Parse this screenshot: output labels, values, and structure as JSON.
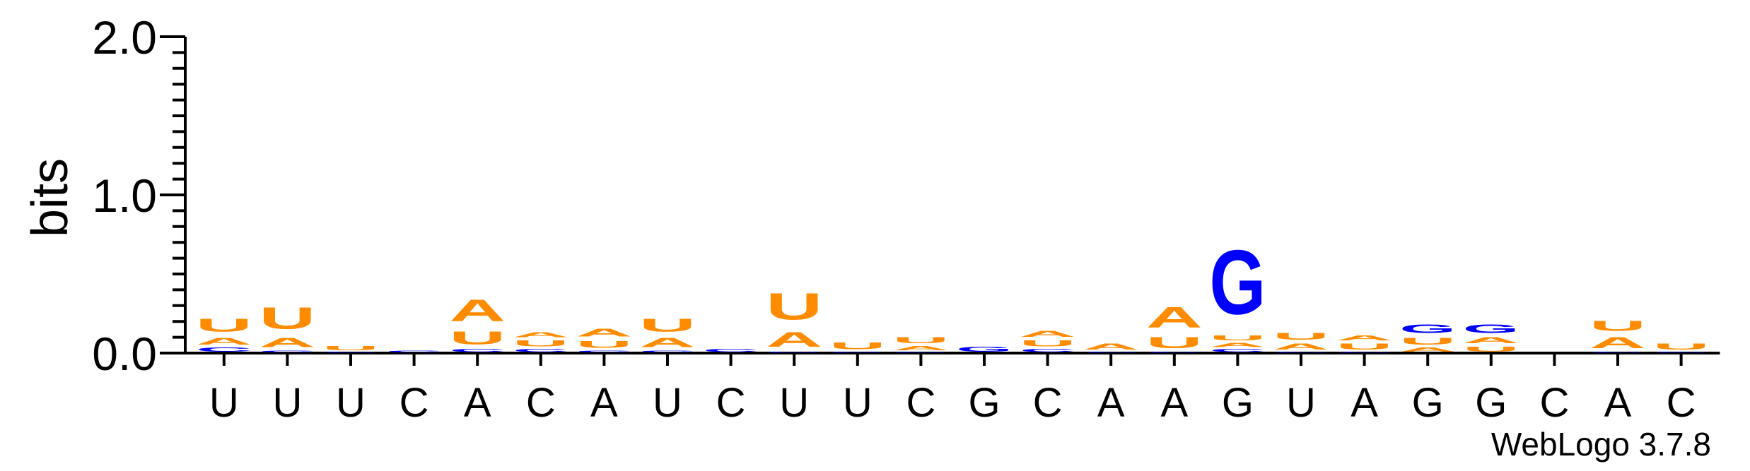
{
  "chart_data": {
    "type": "sequence_logo",
    "ylabel": "bits",
    "ylim": [
      0,
      2.0
    ],
    "y_ticks": [
      "0.0",
      "1.0",
      "2.0"
    ],
    "y_tick_values": [
      0,
      1,
      2
    ],
    "x_labels": [
      "U",
      "U",
      "U",
      "C",
      "A",
      "C",
      "A",
      "U",
      "C",
      "U",
      "U",
      "C",
      "G",
      "C",
      "A",
      "A",
      "G",
      "U",
      "A",
      "G",
      "G",
      "C",
      "A",
      "C"
    ],
    "colors": {
      "A": "#ff8c00",
      "U": "#ff8c00",
      "G": "#0000ff",
      "C": "#0000ff"
    },
    "positions": [
      [
        [
          "C",
          0.04
        ],
        [
          "A",
          0.07
        ],
        [
          "U",
          0.13
        ]
      ],
      [
        [
          "C",
          0.02
        ],
        [
          "A",
          0.09
        ],
        [
          "U",
          0.22
        ]
      ],
      [
        [
          "C",
          0.01
        ],
        [
          "U",
          0.04
        ]
      ],
      [
        [
          "C",
          0.02
        ]
      ],
      [
        [
          "C",
          0.03
        ],
        [
          "U",
          0.13
        ],
        [
          "A",
          0.22
        ]
      ],
      [
        [
          "C",
          0.03
        ],
        [
          "U",
          0.06
        ],
        [
          "A",
          0.05
        ]
      ],
      [
        [
          "C",
          0.02
        ],
        [
          "U",
          0.07
        ],
        [
          "A",
          0.08
        ]
      ],
      [
        [
          "C",
          0.02
        ],
        [
          "A",
          0.09
        ],
        [
          "U",
          0.13
        ]
      ],
      [
        [
          "C",
          0.03
        ]
      ],
      [
        [
          "C",
          0.01
        ],
        [
          "A",
          0.15
        ],
        [
          "U",
          0.27
        ]
      ],
      [
        [
          "C",
          0.01
        ],
        [
          "U",
          0.07
        ]
      ],
      [
        [
          "C",
          0.01
        ],
        [
          "A",
          0.04
        ],
        [
          "U",
          0.06
        ]
      ],
      [
        [
          "G",
          0.05
        ]
      ],
      [
        [
          "C",
          0.03
        ],
        [
          "U",
          0.06
        ],
        [
          "A",
          0.06
        ]
      ],
      [
        [
          "C",
          0.01
        ],
        [
          "A",
          0.06
        ]
      ],
      [
        [
          "C",
          0.01
        ],
        [
          "U",
          0.11
        ],
        [
          "A",
          0.21
        ]
      ],
      [
        [
          "C",
          0.03
        ],
        [
          "A",
          0.04
        ],
        [
          "U",
          0.05
        ],
        [
          "G",
          0.65
        ]
      ],
      [
        [
          "C",
          0.01
        ],
        [
          "A",
          0.06
        ],
        [
          "U",
          0.07
        ]
      ],
      [
        [
          "C",
          0.01
        ],
        [
          "U",
          0.06
        ],
        [
          "A",
          0.05
        ]
      ],
      [
        [
          "A",
          0.04
        ],
        [
          "U",
          0.07
        ],
        [
          "G",
          0.09
        ]
      ],
      [
        [
          "U",
          0.05
        ],
        [
          "A",
          0.06
        ],
        [
          "G",
          0.09
        ]
      ],
      [],
      [
        [
          "C",
          0.01
        ],
        [
          "A",
          0.11
        ],
        [
          "U",
          0.1
        ]
      ],
      [
        [
          "C",
          0.01
        ],
        [
          "U",
          0.06
        ]
      ]
    ],
    "credit": "WebLogo 3.7.8"
  }
}
